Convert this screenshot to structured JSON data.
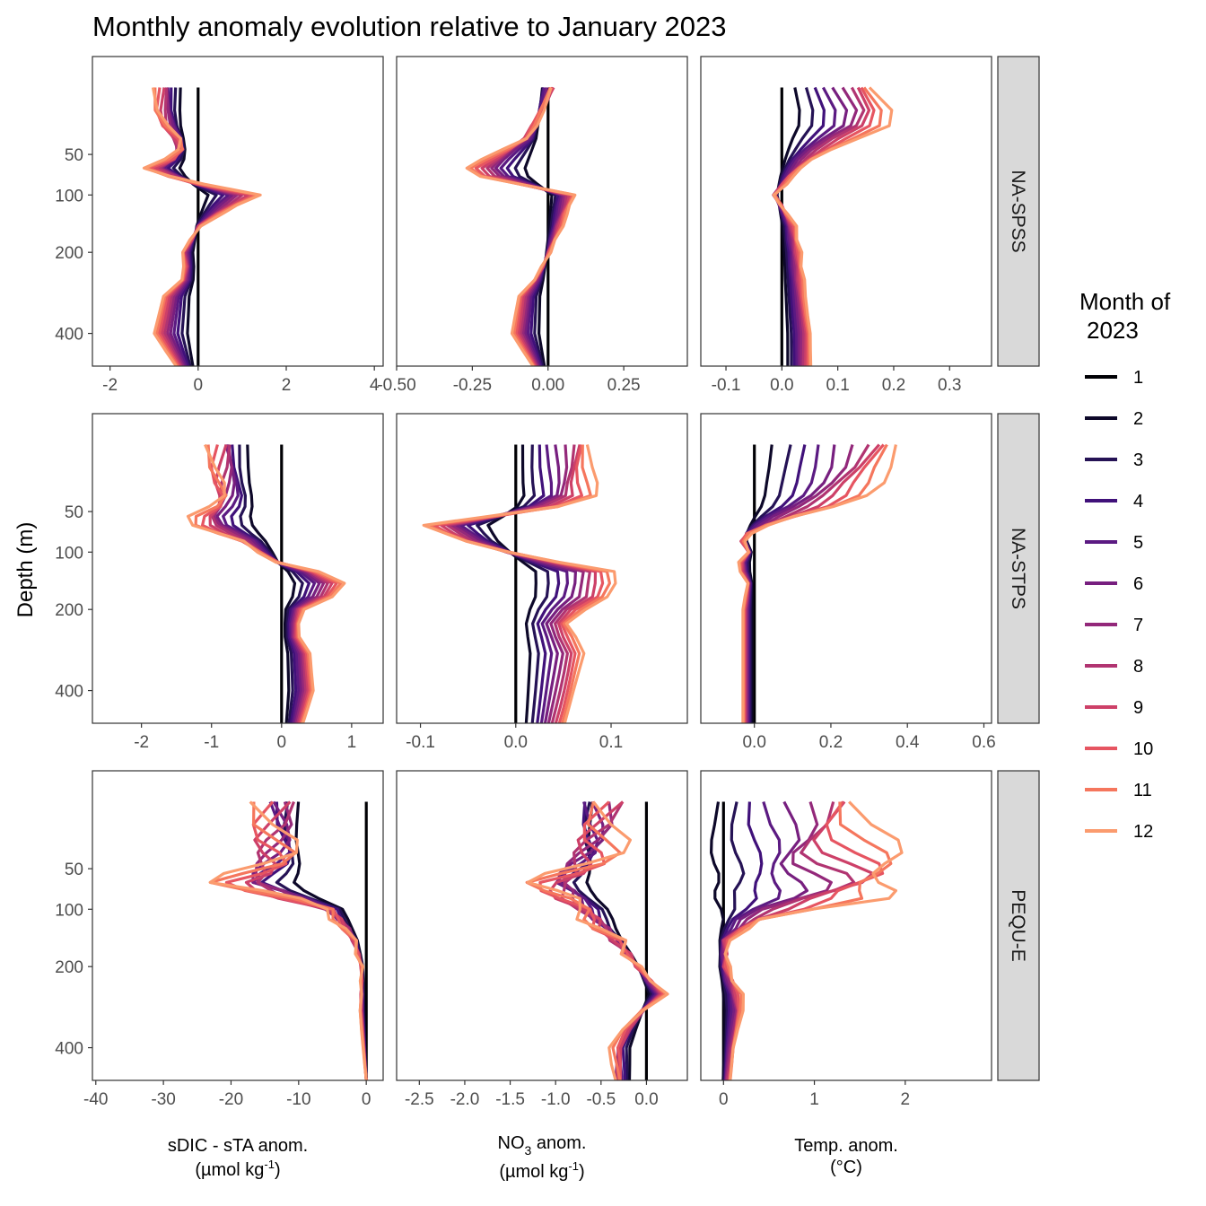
{
  "title": "Monthly anomaly evolution relative to January 2023",
  "ylabel": "Depth (m)",
  "legend": {
    "title_line1": "Month of",
    "title_line2": "2023",
    "entries": [
      "1",
      "2",
      "3",
      "4",
      "5",
      "6",
      "7",
      "8",
      "9",
      "10",
      "11",
      "12"
    ],
    "colors": [
      "#000004",
      "#0d0829",
      "#251255",
      "#40117a",
      "#5b1a82",
      "#771f7f",
      "#93287a",
      "#b13471",
      "#cd4068",
      "#e65561",
      "#f5765d",
      "#fb9b6e"
    ]
  },
  "x_axis_labels": [
    {
      "line1": "sDIC - sTA anom.",
      "line2_pre": "(µmol kg",
      "line2_sup": "-1",
      "line2_post": ")"
    },
    {
      "line1_pre": "NO",
      "line1_sub": "3",
      "line1_post": " anom.",
      "line2_pre": "(µmol kg",
      "line2_sup": "-1",
      "line2_post": ")"
    },
    {
      "line1": "Temp. anom.",
      "line2": "(°C)"
    }
  ],
  "chart_data": {
    "type": "line",
    "facet_rows": [
      "NA-SPSS",
      "NA-STPS",
      "PEQU-E"
    ],
    "facet_cols": [
      "sDIC - sTA anom.",
      "NO3 anom.",
      "Temp. anom."
    ],
    "y_axis": {
      "variable": "Depth (m)",
      "scale": "sqrt-reversed",
      "range": [
        0,
        500
      ],
      "ticks": [
        50,
        100,
        200,
        400
      ]
    },
    "panels": [
      [
        {
          "xlim": [
            -2.4,
            4.2
          ],
          "xticks": [
            -2,
            0,
            2,
            4
          ],
          "xticklabels": [
            "-2",
            "0",
            "2",
            "4"
          ],
          "base": [
            [
              5,
              -1.1
            ],
            [
              20,
              -1.1
            ],
            [
              35,
              -0.7
            ],
            [
              50,
              -0.6
            ],
            [
              65,
              -1.3
            ],
            [
              80,
              -0.5
            ],
            [
              100,
              1.3
            ],
            [
              120,
              0.7
            ],
            [
              150,
              0.0
            ],
            [
              200,
              -0.4
            ],
            [
              250,
              -0.3
            ],
            [
              300,
              -0.8
            ],
            [
              400,
              -1.0
            ],
            [
              500,
              -0.5
            ]
          ],
          "spread": [
            [
              5,
              0.45
            ],
            [
              40,
              0.5
            ],
            [
              65,
              0.35
            ],
            [
              100,
              0.25
            ],
            [
              150,
              0.1
            ],
            [
              250,
              0.05
            ],
            [
              500,
              0.0
            ]
          ]
        },
        {
          "xlim": [
            -0.5,
            0.46
          ],
          "xticks": [
            -0.5,
            -0.25,
            0,
            0.25
          ],
          "xticklabels": [
            "-0.50",
            "-0.25",
            "0.00",
            "0.25"
          ],
          "base": [
            [
              5,
              0.0
            ],
            [
              20,
              -0.05
            ],
            [
              35,
              -0.1
            ],
            [
              50,
              -0.2
            ],
            [
              70,
              -0.3
            ],
            [
              100,
              0.08
            ],
            [
              150,
              0.04
            ],
            [
              200,
              0.0
            ],
            [
              250,
              -0.04
            ],
            [
              300,
              -0.1
            ],
            [
              400,
              -0.12
            ],
            [
              500,
              -0.05
            ]
          ],
          "spread": [
            [
              5,
              0.06
            ],
            [
              50,
              0.04
            ],
            [
              100,
              0.02
            ],
            [
              200,
              0.015
            ],
            [
              500,
              0.0
            ]
          ]
        },
        {
          "xlim": [
            -0.145,
            0.375
          ],
          "xticks": [
            -0.1,
            0,
            0.1,
            0.2,
            0.3
          ],
          "xticklabels": [
            "-0.1",
            "0.0",
            "0.1",
            "0.2",
            "0.3"
          ],
          "base": [
            [
              5,
              0.15
            ],
            [
              20,
              0.2
            ],
            [
              35,
              0.12
            ],
            [
              50,
              0.06
            ],
            [
              70,
              0.02
            ],
            [
              100,
              -0.02
            ],
            [
              120,
              0.0
            ],
            [
              150,
              0.02
            ],
            [
              200,
              0.03
            ],
            [
              300,
              0.04
            ],
            [
              400,
              0.05
            ],
            [
              500,
              0.05
            ]
          ],
          "spread": [
            [
              5,
              0.04
            ],
            [
              50,
              0.02
            ],
            [
              100,
              0.012
            ],
            [
              300,
              0.006
            ],
            [
              500,
              0.004
            ]
          ]
        }
      ],
      [
        {
          "xlim": [
            -2.7,
            1.45
          ],
          "xticks": [
            -2,
            -1,
            0,
            1
          ],
          "xticklabels": [
            "-2",
            "-1",
            "0",
            "1"
          ],
          "base": [
            [
              5,
              -1.2
            ],
            [
              40,
              -1.1
            ],
            [
              60,
              -1.5
            ],
            [
              90,
              -0.5
            ],
            [
              110,
              -0.3
            ],
            [
              140,
              0.9
            ],
            [
              170,
              0.8
            ],
            [
              200,
              0.3
            ],
            [
              250,
              0.2
            ],
            [
              300,
              0.4
            ],
            [
              400,
              0.45
            ],
            [
              500,
              0.3
            ]
          ],
          "spread": [
            [
              5,
              0.65
            ],
            [
              50,
              0.4
            ],
            [
              100,
              0.12
            ],
            [
              150,
              0.05
            ],
            [
              250,
              0.02
            ],
            [
              500,
              0.01
            ]
          ]
        },
        {
          "xlim": [
            -0.125,
            0.18
          ],
          "xticks": [
            -0.1,
            0,
            0.1
          ],
          "xticklabels": [
            "-0.1",
            "0.0",
            "0.1"
          ],
          "base": [
            [
              5,
              0.07
            ],
            [
              40,
              0.07
            ],
            [
              65,
              -0.1
            ],
            [
              90,
              -0.05
            ],
            [
              130,
              0.1
            ],
            [
              170,
              0.1
            ],
            [
              220,
              0.05
            ],
            [
              300,
              0.07
            ],
            [
              400,
              0.06
            ],
            [
              500,
              0.05
            ]
          ],
          "spread": [
            [
              5,
              0.03
            ],
            [
              50,
              0.02
            ],
            [
              100,
              0.01
            ],
            [
              200,
              0.005
            ],
            [
              500,
              0.003
            ]
          ]
        },
        {
          "xlim": [
            -0.14,
            0.62
          ],
          "xticks": [
            0,
            0.2,
            0.4,
            0.6
          ],
          "xticklabels": [
            "0.0",
            "0.2",
            "0.4",
            "0.6"
          ],
          "base": [
            [
              5,
              0.35
            ],
            [
              20,
              0.3
            ],
            [
              40,
              0.22
            ],
            [
              60,
              0.05
            ],
            [
              80,
              -0.05
            ],
            [
              100,
              -0.02
            ],
            [
              120,
              -0.05
            ],
            [
              150,
              -0.02
            ],
            [
              200,
              -0.03
            ],
            [
              300,
              -0.03
            ],
            [
              400,
              -0.03
            ],
            [
              500,
              -0.03
            ]
          ],
          "spread": [
            [
              5,
              0.12
            ],
            [
              50,
              0.07
            ],
            [
              100,
              0.01
            ],
            [
              200,
              0.0
            ],
            [
              500,
              0.0
            ]
          ]
        }
      ],
      [
        {
          "xlim": [
            -40.5,
            2.5
          ],
          "xticks": [
            -40,
            -30,
            -20,
            -10,
            0
          ],
          "xticklabels": [
            "-40",
            "-30",
            "-20",
            "-10",
            "0"
          ],
          "base": [
            [
              5,
              -20
            ],
            [
              40,
              -20
            ],
            [
              65,
              -26
            ],
            [
              100,
              -8
            ],
            [
              140,
              -3
            ],
            [
              200,
              -1
            ],
            [
              300,
              -1
            ],
            [
              400,
              -0.5
            ],
            [
              500,
              0
            ]
          ],
          "spread": [
            [
              5,
              17
            ],
            [
              50,
              15
            ],
            [
              70,
              14
            ],
            [
              100,
              5
            ],
            [
              150,
              2
            ],
            [
              200,
              0.8
            ],
            [
              300,
              0.3
            ],
            [
              500,
              0.0
            ]
          ]
        },
        {
          "xlim": [
            -2.75,
            0.45
          ],
          "xticks": [
            -2.5,
            -2,
            -1.5,
            -1,
            -0.5,
            0
          ],
          "xticklabels": [
            "-2.5",
            "-2.0",
            "-1.5",
            "-1.0",
            "-0.5",
            "0.0"
          ],
          "base": [
            [
              5,
              -0.8
            ],
            [
              40,
              -1.0
            ],
            [
              65,
              -1.5
            ],
            [
              100,
              -1.0
            ],
            [
              150,
              -0.5
            ],
            [
              200,
              -0.15
            ],
            [
              260,
              0.2
            ],
            [
              320,
              -0.2
            ],
            [
              400,
              -0.45
            ],
            [
              500,
              -0.45
            ]
          ],
          "spread": [
            [
              5,
              1.3
            ],
            [
              50,
              1.1
            ],
            [
              70,
              0.9
            ],
            [
              100,
              0.6
            ],
            [
              150,
              0.45
            ],
            [
              200,
              0.15
            ],
            [
              260,
              0.05
            ],
            [
              320,
              0.1
            ],
            [
              400,
              0.25
            ],
            [
              500,
              0.25
            ]
          ]
        },
        {
          "xlim": [
            -0.25,
            2.95
          ],
          "xticks": [
            0,
            1,
            2
          ],
          "xticklabels": [
            "0",
            "1",
            "2"
          ],
          "base": [
            [
              5,
              1.2
            ],
            [
              40,
              1.2
            ],
            [
              60,
              1.5
            ],
            [
              80,
              1.3
            ],
            [
              110,
              0.4
            ],
            [
              150,
              0.0
            ],
            [
              200,
              0.0
            ],
            [
              280,
              0.2
            ],
            [
              400,
              0.1
            ],
            [
              500,
              0.05
            ]
          ],
          "spread": [
            [
              5,
              1.1
            ],
            [
              50,
              1.3
            ],
            [
              80,
              1.2
            ],
            [
              110,
              0.3
            ],
            [
              150,
              0.12
            ],
            [
              200,
              0.12
            ],
            [
              280,
              0.1
            ],
            [
              400,
              0.05
            ],
            [
              500,
              0.05
            ]
          ]
        }
      ]
    ],
    "series": [
      {
        "name": "1",
        "month": 1
      },
      {
        "name": "2",
        "month": 2
      },
      {
        "name": "3",
        "month": 3
      },
      {
        "name": "4",
        "month": 4
      },
      {
        "name": "5",
        "month": 5
      },
      {
        "name": "6",
        "month": 6
      },
      {
        "name": "7",
        "month": 7
      },
      {
        "name": "8",
        "month": 8
      },
      {
        "name": "9",
        "month": 9
      },
      {
        "name": "10",
        "month": 10
      },
      {
        "name": "11",
        "month": 11
      },
      {
        "name": "12",
        "month": 12
      }
    ],
    "depth_profile": [
      5,
      15,
      25,
      35,
      45,
      55,
      65,
      75,
      85,
      100,
      115,
      130,
      150,
      175,
      200,
      230,
      260,
      300,
      350,
      400,
      450,
      500
    ],
    "grid": false,
    "legend_position": "right"
  }
}
